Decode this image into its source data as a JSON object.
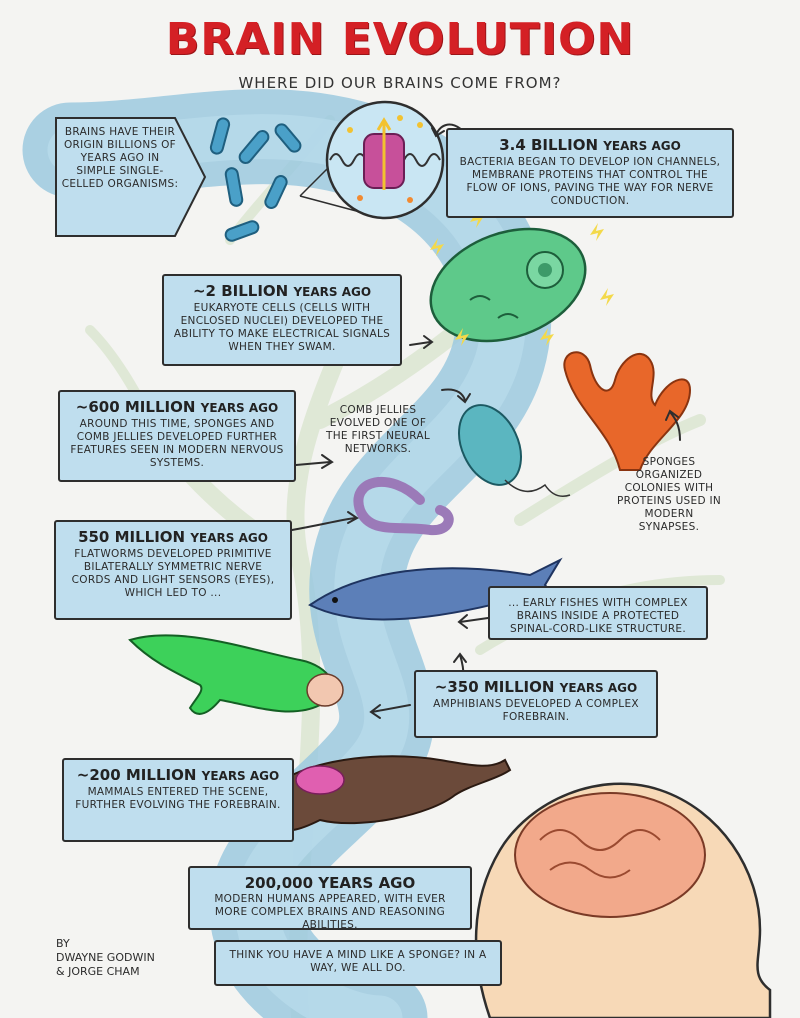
{
  "title": "BRAIN EVOLUTION",
  "subtitle": "WHERE DID OUR BRAINS COME FROM?",
  "intro_arrow": {
    "text": "Brains have their origin billions of years ago in simple single-celled organisms:"
  },
  "milestones": [
    {
      "heading_main": "3.4 BILLION",
      "heading_tail": "YEARS AGO",
      "body": "Bacteria began to develop ion channels, membrane proteins that control the flow of ions, paving the way for nerve conduction."
    },
    {
      "heading_main": "~2 BILLION",
      "heading_tail": "YEARS AGO",
      "body": "Eukaryote cells (cells with enclosed nuclei) developed the ability to make electrical signals when they swam."
    },
    {
      "heading_main": "~600 MILLION",
      "heading_tail": "YEARS AGO",
      "body": "Around this time, sponges and comb jellies developed further features seen in modern nervous systems."
    },
    {
      "heading_main": "550 MILLION",
      "heading_tail": "YEARS AGO",
      "body": "Flatworms developed primitive bilaterally symmetric nerve cords and light sensors (eyes), which led to ..."
    },
    {
      "heading_main": "",
      "heading_tail": "",
      "body": "... Early fishes with complex brains inside a protected spinal-cord-like structure."
    },
    {
      "heading_main": "~350 MILLION",
      "heading_tail": "YEARS AGO",
      "body": "Amphibians developed a complex forebrain."
    },
    {
      "heading_main": "~200 MILLION",
      "heading_tail": "YEARS AGO",
      "body": "Mammals entered the scene, further evolving the forebrain."
    },
    {
      "heading_main": "200,000 YEARS AGO",
      "heading_tail": "",
      "body": "Modern humans appeared, with ever more complex brains and reasoning abilities."
    }
  ],
  "notes": {
    "comb_jellies": "Comb jellies evolved one of the first neural networks.",
    "sponges": "Sponges organized colonies with proteins used in modern synapses.",
    "closing": "Think you have a mind like a sponge? In a way, we all do."
  },
  "credit": {
    "line1": "By",
    "line2": "Dwayne Godwin",
    "line3": "& Jorge Cham"
  },
  "colors": {
    "title_red": "#d42025",
    "box_fill": "#bfdeee",
    "stream_blue": "#8fc3dc",
    "outline": "#2e2e2e"
  }
}
